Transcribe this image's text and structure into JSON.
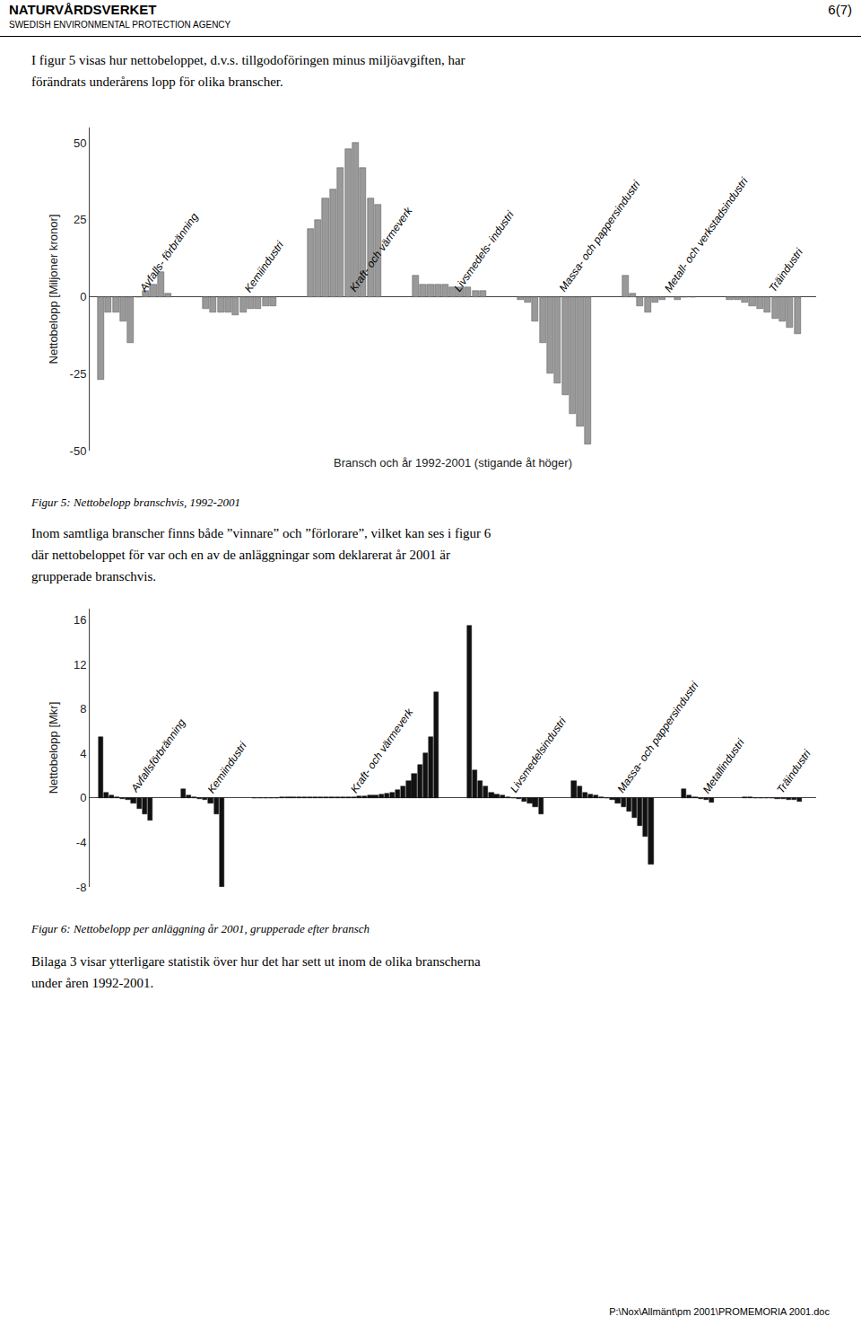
{
  "annotations": [
    "NATURVÅRDSVERKET",
    "SWEDISH ENVIRONMENTAL PROTECTION AGENCY",
    "6(7)",
    "I figur 5 visas hur nettobeloppet, d.v.s. tillgodoföringen minus miljöavgiften, har\nförändrats underårens lopp för olika branscher.",
    "Inom samtliga branscher finns både ”vinnare” och ”förlorare”, vilket kan ses i figur 6\ndär nettobeloppet för var och en av de anläggningar som deklarerat år 2001 är\ngrupperade branschvis.",
    "Bilaga 3 visar ytterligare statistik över hur det har sett ut inom de olika branscherna\nunder åren 1992-2001.",
    "P:\\Nox\\Allmänt\\pm 2001\\PROMEMORIA 2001.doc"
  ],
  "chart_data": [
    {
      "type": "bar",
      "title": "Figur 5: Nettobelopp branschvis, 1992-2001",
      "xlabel": "Bransch och år 1992-2001 (stigande åt höger)",
      "ylabel": "Nettobelopp [Miljoner kronor]",
      "ylim": [
        -50,
        55
      ],
      "yticks": [
        -50,
        -25,
        0,
        25,
        50
      ],
      "color": "#999999",
      "grid": false,
      "tick_labels": "y",
      "series": [
        {
          "name": "Avfalls- förbränning",
          "values": [
            -27,
            -5,
            -5,
            -8,
            -15,
            0,
            2,
            4,
            8,
            1
          ]
        },
        {
          "name": "Kemiindustri",
          "values": [
            -4,
            -5,
            -5,
            -5,
            -6,
            -5,
            -4,
            -4,
            -3,
            -3
          ]
        },
        {
          "name": "Kraft- och värmeverk",
          "values": [
            22,
            25,
            32,
            35,
            42,
            48,
            50,
            42,
            32,
            30
          ]
        },
        {
          "name": "Livsmedels- industri",
          "values": [
            7,
            4,
            4,
            4,
            4,
            3,
            3,
            3,
            2,
            2
          ]
        },
        {
          "name": "Massa- och pappersindustri",
          "values": [
            -1,
            -2,
            -8,
            -15,
            -25,
            -28,
            -32,
            -38,
            -42,
            -48
          ]
        },
        {
          "name": "Metall- och verkstadsindustri",
          "values": [
            7,
            1,
            -3,
            -5,
            -2,
            -1,
            0,
            -1,
            0,
            0
          ]
        },
        {
          "name": "Träindustri",
          "values": [
            -1,
            -1,
            -2,
            -3,
            -4,
            -5,
            -7,
            -8,
            -10,
            -12
          ]
        }
      ]
    },
    {
      "type": "bar",
      "title": "Figur 6:  Nettobelopp per anläggning år 2001, grupperade efter bransch",
      "ylabel": "Nettobelopp [Mkr]",
      "ylim": [
        -8,
        17
      ],
      "yticks": [
        -8,
        -4,
        0,
        4,
        8,
        12,
        16
      ],
      "color": "#111111",
      "grid": false,
      "tick_labels": "y",
      "series": [
        {
          "name": "Avfallsförbränning",
          "values": [
            5.5,
            0.5,
            0.2,
            0.1,
            -0.1,
            -0.2,
            -0.5,
            -1.0,
            -1.5,
            -2.0
          ]
        },
        {
          "name": "Kemiindustri",
          "values": [
            0.8,
            0.2,
            0.1,
            -0.1,
            -0.2,
            -0.5,
            -1.5,
            -8.0
          ]
        },
        {
          "name": "Kraft- och värmeverk",
          "values": [
            0.02,
            0.02,
            0.02,
            0.02,
            0.02,
            0.03,
            0.03,
            0.03,
            0.03,
            0.04,
            0.04,
            0.04,
            0.05,
            0.05,
            0.05,
            0.06,
            0.07,
            0.08,
            0.1,
            0.12,
            0.15,
            0.2,
            0.25,
            0.3,
            0.4,
            0.5,
            0.7,
            1.0,
            1.5,
            2.2,
            3.0,
            4.0,
            5.5,
            9.5
          ]
        },
        {
          "name": "Livsmedelsindustri",
          "values": [
            15.5,
            2.5,
            1.5,
            1.0,
            0.5,
            0.3,
            0.2,
            0.1,
            0.0,
            -0.1,
            -0.3,
            -0.5,
            -0.8,
            -1.5
          ]
        },
        {
          "name": "Massa- och pappersindustri",
          "values": [
            1.5,
            1.0,
            0.5,
            0.3,
            0.2,
            0.1,
            0.0,
            -0.2,
            -0.5,
            -0.8,
            -1.2,
            -1.8,
            -2.5,
            -3.5,
            -6.0
          ]
        },
        {
          "name": "Metallindustri",
          "values": [
            0.8,
            0.2,
            0.1,
            -0.1,
            -0.2,
            -0.4
          ]
        },
        {
          "name": "Träindustri",
          "values": [
            0.05,
            0.03,
            0.01,
            -0.01,
            -0.03,
            -0.05,
            -0.08,
            -0.1,
            -0.15,
            -0.2,
            -0.3
          ]
        }
      ]
    }
  ]
}
